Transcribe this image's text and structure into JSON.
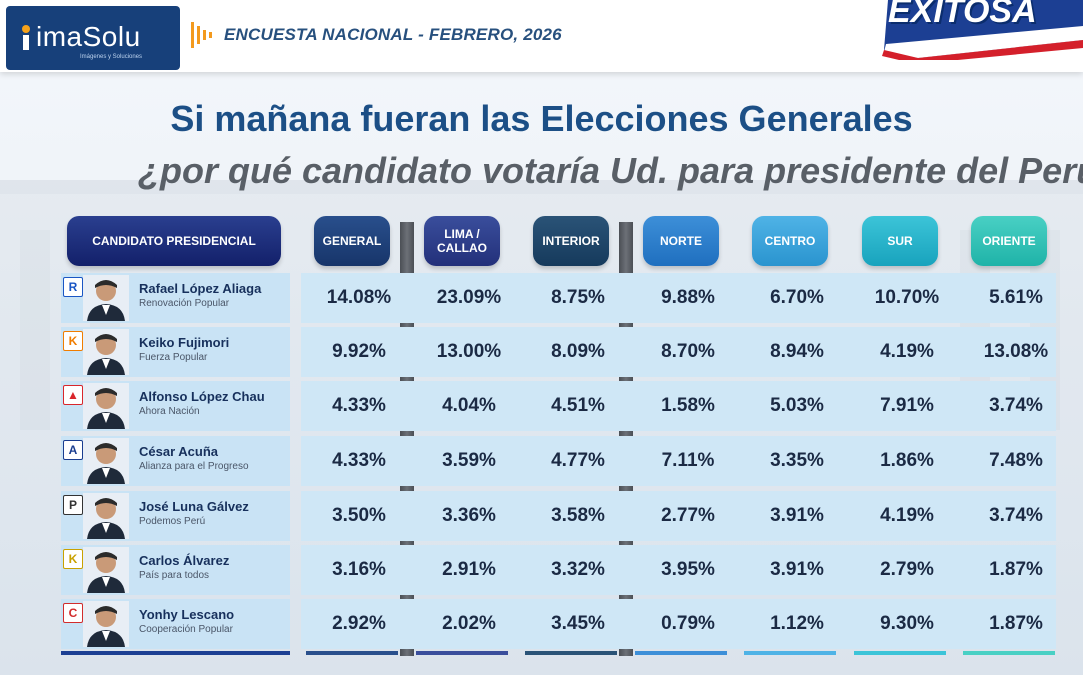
{
  "header": {
    "brand": "imaSolu",
    "brand_tagline": "Imágenes y Soluciones",
    "survey_title": "ENCUESTA NACIONAL - FEBRERO, 2026",
    "station": "EXITOSA"
  },
  "headline": {
    "line1": "Si mañana fueran las Elecciones Generales",
    "line2": "¿por qué candidato votaría Ud. para presidente del Perú?"
  },
  "table": {
    "columns": {
      "candidate": "CANDIDATO PRESIDENCIAL",
      "general": "GENERAL",
      "lima": "LIMA / CALLAO",
      "interior": "INTERIOR",
      "norte": "NORTE",
      "centro": "CENTRO",
      "sur": "SUR",
      "oriente": "ORIENTE"
    },
    "rows": [
      {
        "name": "Rafael López Aliaga",
        "party": "Renovación Popular",
        "logo": "R",
        "logo_color": "#1a56c4",
        "values": [
          "14.08%",
          "23.09%",
          "8.75%",
          "9.88%",
          "6.70%",
          "10.70%",
          "5.61%"
        ]
      },
      {
        "name": "Keiko Fujimori",
        "party": "Fuerza Popular",
        "logo": "K",
        "logo_color": "#f07d00",
        "values": [
          "9.92%",
          "13.00%",
          "8.09%",
          "8.70%",
          "8.94%",
          "4.19%",
          "13.08%"
        ]
      },
      {
        "name": "Alfonso López Chau",
        "party": "Ahora Nación",
        "logo": "▲",
        "logo_color": "#d9262b",
        "values": [
          "4.33%",
          "4.04%",
          "4.51%",
          "1.58%",
          "5.03%",
          "7.91%",
          "3.74%"
        ]
      },
      {
        "name": "César Acuña",
        "party": "Alianza para el Progreso",
        "logo": "A",
        "logo_color": "#1a3d8f",
        "values": [
          "4.33%",
          "3.59%",
          "4.77%",
          "7.11%",
          "3.35%",
          "1.86%",
          "7.48%"
        ]
      },
      {
        "name": "José Luna Gálvez",
        "party": "Podemos Perú",
        "logo": "P",
        "logo_color": "#333333",
        "values": [
          "3.50%",
          "3.36%",
          "3.58%",
          "2.77%",
          "3.91%",
          "4.19%",
          "3.74%"
        ]
      },
      {
        "name": "Carlos Álvarez",
        "party": "País para todos",
        "logo": "K",
        "logo_color": "#c9a100",
        "values": [
          "3.16%",
          "2.91%",
          "3.32%",
          "3.95%",
          "3.91%",
          "2.79%",
          "1.87%"
        ]
      },
      {
        "name": "Yonhy Lescano",
        "party": "Cooperación Popular",
        "logo": "C",
        "logo_color": "#d22d2d",
        "values": [
          "2.92%",
          "2.02%",
          "3.45%",
          "0.79%",
          "1.12%",
          "9.30%",
          "1.87%"
        ]
      }
    ]
  },
  "colors": {
    "headline": "#1c4f86",
    "subheadline": "#595f67",
    "brand_box": "#17407a"
  }
}
